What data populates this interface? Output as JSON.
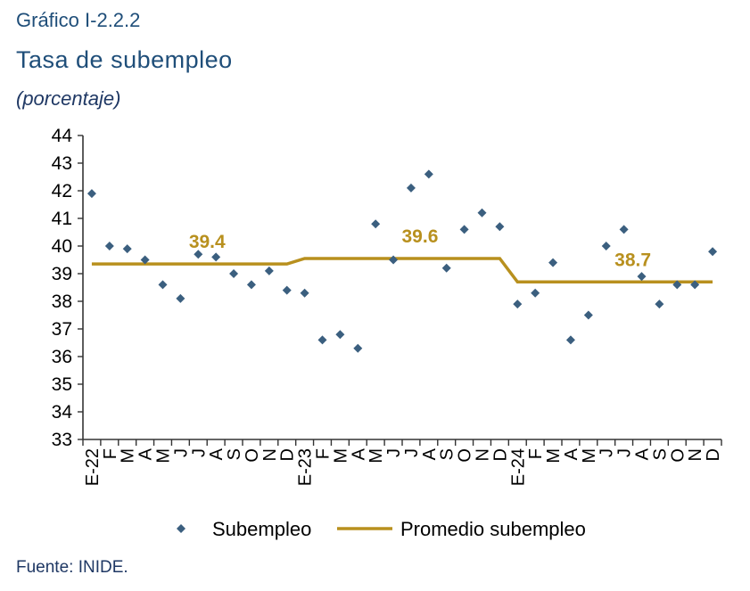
{
  "header": {
    "label": "Gráfico I-2.2.2",
    "title": "Tasa de subempleo",
    "subtitle": "(porcentaje)"
  },
  "source": "Fuente: INIDE.",
  "chart_data": {
    "type": "scatter",
    "title": "Tasa de subempleo",
    "subtitle": "(porcentaje)",
    "xlabel": "",
    "ylabel": "",
    "ylim": [
      33,
      44
    ],
    "yticks": [
      33,
      34,
      35,
      36,
      37,
      38,
      39,
      40,
      41,
      42,
      43,
      44
    ],
    "grid": false,
    "legend_position": "bottom",
    "categories": [
      "E-22",
      "F",
      "M",
      "A",
      "M",
      "J",
      "J",
      "A",
      "S",
      "O",
      "N",
      "D",
      "E-23",
      "F",
      "M",
      "A",
      "M",
      "J",
      "J",
      "A",
      "S",
      "O",
      "N",
      "D",
      "E-24",
      "F",
      "M",
      "A",
      "M",
      "J",
      "J",
      "A",
      "S",
      "O",
      "N",
      "D"
    ],
    "series": [
      {
        "name": "Subempleo",
        "marker": "diamond",
        "color": "#3b5f7f",
        "values": [
          41.9,
          40.0,
          39.9,
          39.5,
          38.6,
          38.1,
          39.7,
          39.6,
          39.0,
          38.6,
          39.1,
          38.4,
          38.3,
          36.6,
          36.8,
          36.3,
          40.8,
          39.5,
          42.1,
          42.6,
          39.2,
          40.6,
          41.2,
          40.7,
          37.9,
          38.3,
          39.4,
          36.6,
          37.5,
          40.0,
          40.6,
          38.9,
          37.9,
          38.6,
          38.6,
          39.8
        ]
      },
      {
        "name": "Promedio subempleo",
        "type": "step-line",
        "color": "#b8901e",
        "values": [
          39.35,
          39.35,
          39.35,
          39.35,
          39.35,
          39.35,
          39.35,
          39.35,
          39.35,
          39.35,
          39.35,
          39.35,
          39.55,
          39.55,
          39.55,
          39.55,
          39.55,
          39.55,
          39.55,
          39.55,
          39.55,
          39.55,
          39.55,
          39.55,
          38.7,
          38.7,
          38.7,
          38.7,
          38.7,
          38.7,
          38.7,
          38.7,
          38.7,
          38.7,
          38.7,
          38.7
        ]
      }
    ],
    "annotations": [
      {
        "text": "39.4",
        "x_index": 6,
        "y": 39.35
      },
      {
        "text": "39.6",
        "x_index": 18,
        "y": 39.55
      },
      {
        "text": "38.7",
        "x_index": 30,
        "y": 38.7
      }
    ]
  }
}
